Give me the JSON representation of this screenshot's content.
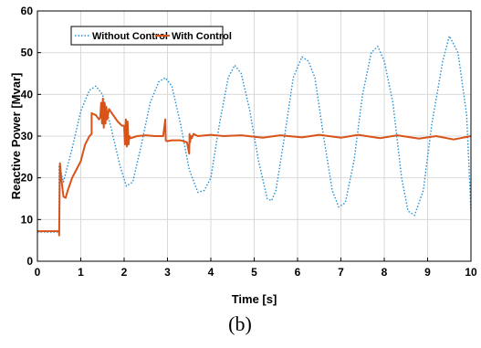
{
  "caption": "(b)",
  "chart_data": {
    "type": "line",
    "xlabel": "Time [s]",
    "ylabel": "Reactive Power [Mvar]",
    "xlim": [
      0,
      10
    ],
    "ylim": [
      0,
      60
    ],
    "xticks": [
      0,
      1,
      2,
      3,
      4,
      5,
      6,
      7,
      8,
      9,
      10
    ],
    "yticks": [
      0,
      10,
      20,
      30,
      40,
      50,
      60
    ],
    "grid": true,
    "legend_position": "top-left",
    "series": [
      {
        "name": "Without Control",
        "color": "#1f8fd6",
        "style": "dotted",
        "x": [
          0,
          0.5,
          0.5,
          0.6,
          0.8,
          1.0,
          1.2,
          1.35,
          1.5,
          1.7,
          1.9,
          2.05,
          2.2,
          2.4,
          2.6,
          2.8,
          2.95,
          3.1,
          3.3,
          3.5,
          3.7,
          3.85,
          4.0,
          4.2,
          4.4,
          4.55,
          4.7,
          4.9,
          5.1,
          5.3,
          5.4,
          5.5,
          5.7,
          5.9,
          6.1,
          6.25,
          6.4,
          6.6,
          6.8,
          6.95,
          7.1,
          7.3,
          7.5,
          7.7,
          7.85,
          8.0,
          8.2,
          8.4,
          8.55,
          8.7,
          8.9,
          9.1,
          9.35,
          9.5,
          9.7,
          9.9,
          10.0
        ],
        "y": [
          7,
          7,
          23,
          19,
          27,
          36,
          41,
          42,
          40,
          32,
          23,
          18,
          19,
          28,
          38,
          43,
          44,
          42,
          33,
          22,
          16.5,
          17,
          20,
          33,
          44,
          47,
          45,
          36,
          24,
          15,
          14.5,
          17,
          30,
          44,
          49,
          48,
          44,
          30,
          17,
          13,
          14,
          24,
          40,
          50,
          51.5,
          48,
          38,
          20,
          12,
          11,
          17,
          33,
          48,
          54,
          50,
          35,
          12
        ]
      },
      {
        "name": "With Control",
        "color": "#d95319",
        "style": "solid",
        "x": [
          0,
          0.5,
          0.5,
          0.52,
          0.55,
          0.6,
          0.65,
          0.7,
          0.8,
          0.9,
          1.0,
          1.1,
          1.2,
          1.25,
          1.25,
          1.35,
          1.42,
          1.45,
          1.47,
          1.49,
          1.51,
          1.53,
          1.55,
          1.57,
          1.59,
          1.61,
          1.65,
          1.75,
          1.85,
          1.95,
          2.0,
          2.02,
          2.04,
          2.06,
          2.08,
          2.1,
          2.12,
          2.15,
          2.3,
          2.5,
          2.7,
          2.9,
          2.95,
          2.96,
          2.98,
          3.0,
          3.1,
          3.3,
          3.45,
          3.5,
          3.51,
          3.52,
          3.54,
          3.56,
          3.6,
          3.7,
          4.0,
          4.3,
          4.7,
          5.2,
          5.6,
          6.1,
          6.5,
          7.0,
          7.4,
          7.9,
          8.3,
          8.8,
          9.2,
          9.6,
          10.0
        ],
        "y": [
          7.2,
          7.2,
          6.2,
          23.5,
          20,
          15.5,
          15.2,
          17,
          20,
          22,
          24,
          28,
          30,
          30.5,
          35.5,
          35,
          34,
          34.5,
          38,
          33,
          39,
          32,
          38,
          33,
          37,
          34,
          36.5,
          35,
          33.5,
          32.5,
          32.5,
          28,
          34,
          27.5,
          33.5,
          28,
          30,
          29.5,
          30,
          30.2,
          30,
          30,
          34,
          29,
          28.8,
          28.8,
          29,
          29,
          28.5,
          25.8,
          30.5,
          28.5,
          30,
          29.5,
          30.5,
          30,
          30.3,
          30,
          30.2,
          29.6,
          30.2,
          29.7,
          30.3,
          29.6,
          30.3,
          29.5,
          30.2,
          29.4,
          30,
          29.2,
          30
        ]
      }
    ]
  }
}
